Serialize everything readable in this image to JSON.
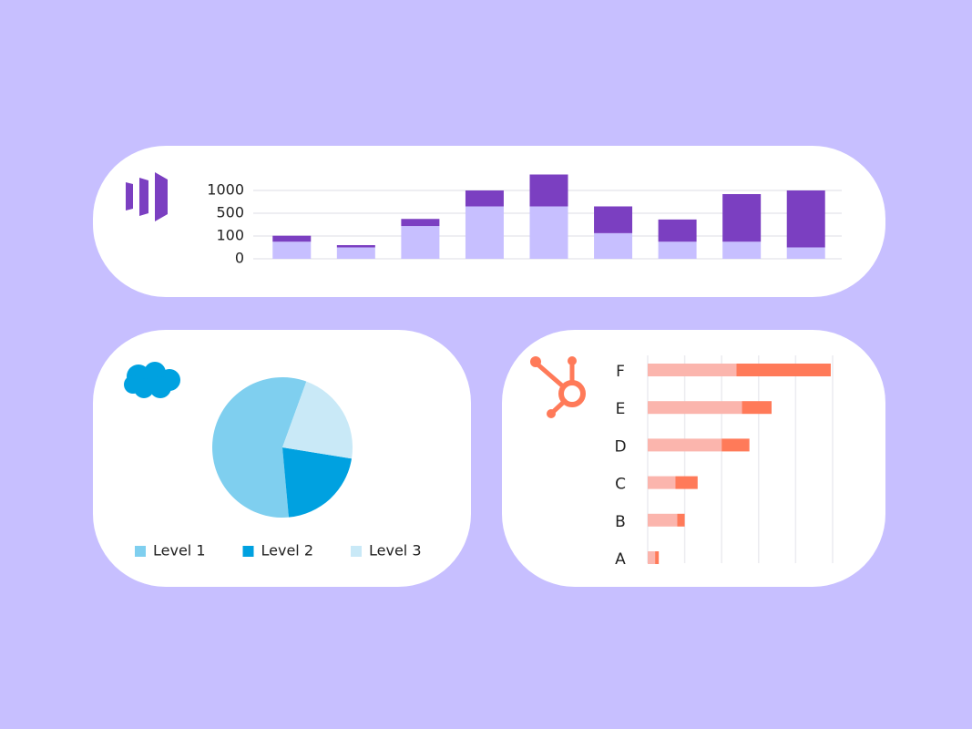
{
  "chart_data": [
    {
      "type": "stacked-bar",
      "categories": [
        null,
        null,
        null,
        null,
        null,
        null,
        null,
        null,
        null
      ],
      "series": [
        {
          "color": "#c7bfff",
          "values": [
            75,
            50,
            275,
            650,
            650,
            150,
            75,
            75,
            50
          ]
        },
        {
          "color": "#7b3fc1",
          "values": [
            30,
            10,
            125,
            350,
            700,
            500,
            315,
            845,
            950
          ]
        }
      ],
      "yticks": [
        0,
        100,
        500,
        1000
      ],
      "grid": true
    },
    {
      "type": "pie",
      "categories": [
        "Level 1",
        "Level 2",
        "Level 3"
      ],
      "values": [
        57,
        21,
        22
      ],
      "colors": [
        "#7fcfef",
        "#00a1e0",
        "#c9e9f7"
      ],
      "startangle": 20,
      "counterclock": true,
      "legend": "bottom"
    },
    {
      "type": "stacked-barh",
      "categories": [
        "A",
        "B",
        "C",
        "D",
        "E",
        "F"
      ],
      "series": [
        {
          "color": "#fbb5ad",
          "values": [
            0.2,
            0.8,
            0.75,
            2.0,
            2.55,
            2.4
          ]
        },
        {
          "color": "#ff7a59",
          "values": [
            0.1,
            0.2,
            0.6,
            0.75,
            0.8,
            2.55
          ]
        }
      ],
      "xlim": [
        0,
        5
      ],
      "xticks": [
        0,
        1,
        2,
        3,
        4,
        5
      ],
      "grid": true
    }
  ]
}
